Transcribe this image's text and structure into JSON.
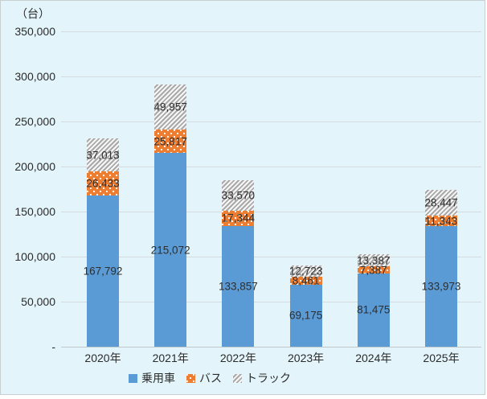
{
  "unit_label": "（台）",
  "chart_data": {
    "type": "bar",
    "stacked": true,
    "title": "",
    "unit": "（台）",
    "categories": [
      "2020年",
      "2021年",
      "2022年",
      "2023年",
      "2024年",
      "2025年"
    ],
    "series": [
      {
        "name": "乗用車",
        "color": "#5B9BD5",
        "pattern": "solid",
        "values": [
          167792,
          215072,
          133857,
          69175,
          81475,
          133973
        ]
      },
      {
        "name": "バス",
        "color": "#ED7D31",
        "pattern": "white-dots",
        "values": [
          26433,
          25817,
          17344,
          8461,
          7387,
          11343
        ]
      },
      {
        "name": "トラック",
        "color": "#BFBFBF",
        "pattern": "diagonal-hatch",
        "values": [
          37013,
          49957,
          33570,
          12723,
          13387,
          28447
        ]
      }
    ],
    "ylim": [
      0,
      350000
    ],
    "ytick_interval": 50000,
    "ytick_labels": [
      "-",
      "50,000",
      "100,000",
      "150,000",
      "200,000",
      "250,000",
      "300,000",
      "350,000"
    ],
    "grid": true,
    "data_labels": true,
    "legend_position": "bottom"
  }
}
